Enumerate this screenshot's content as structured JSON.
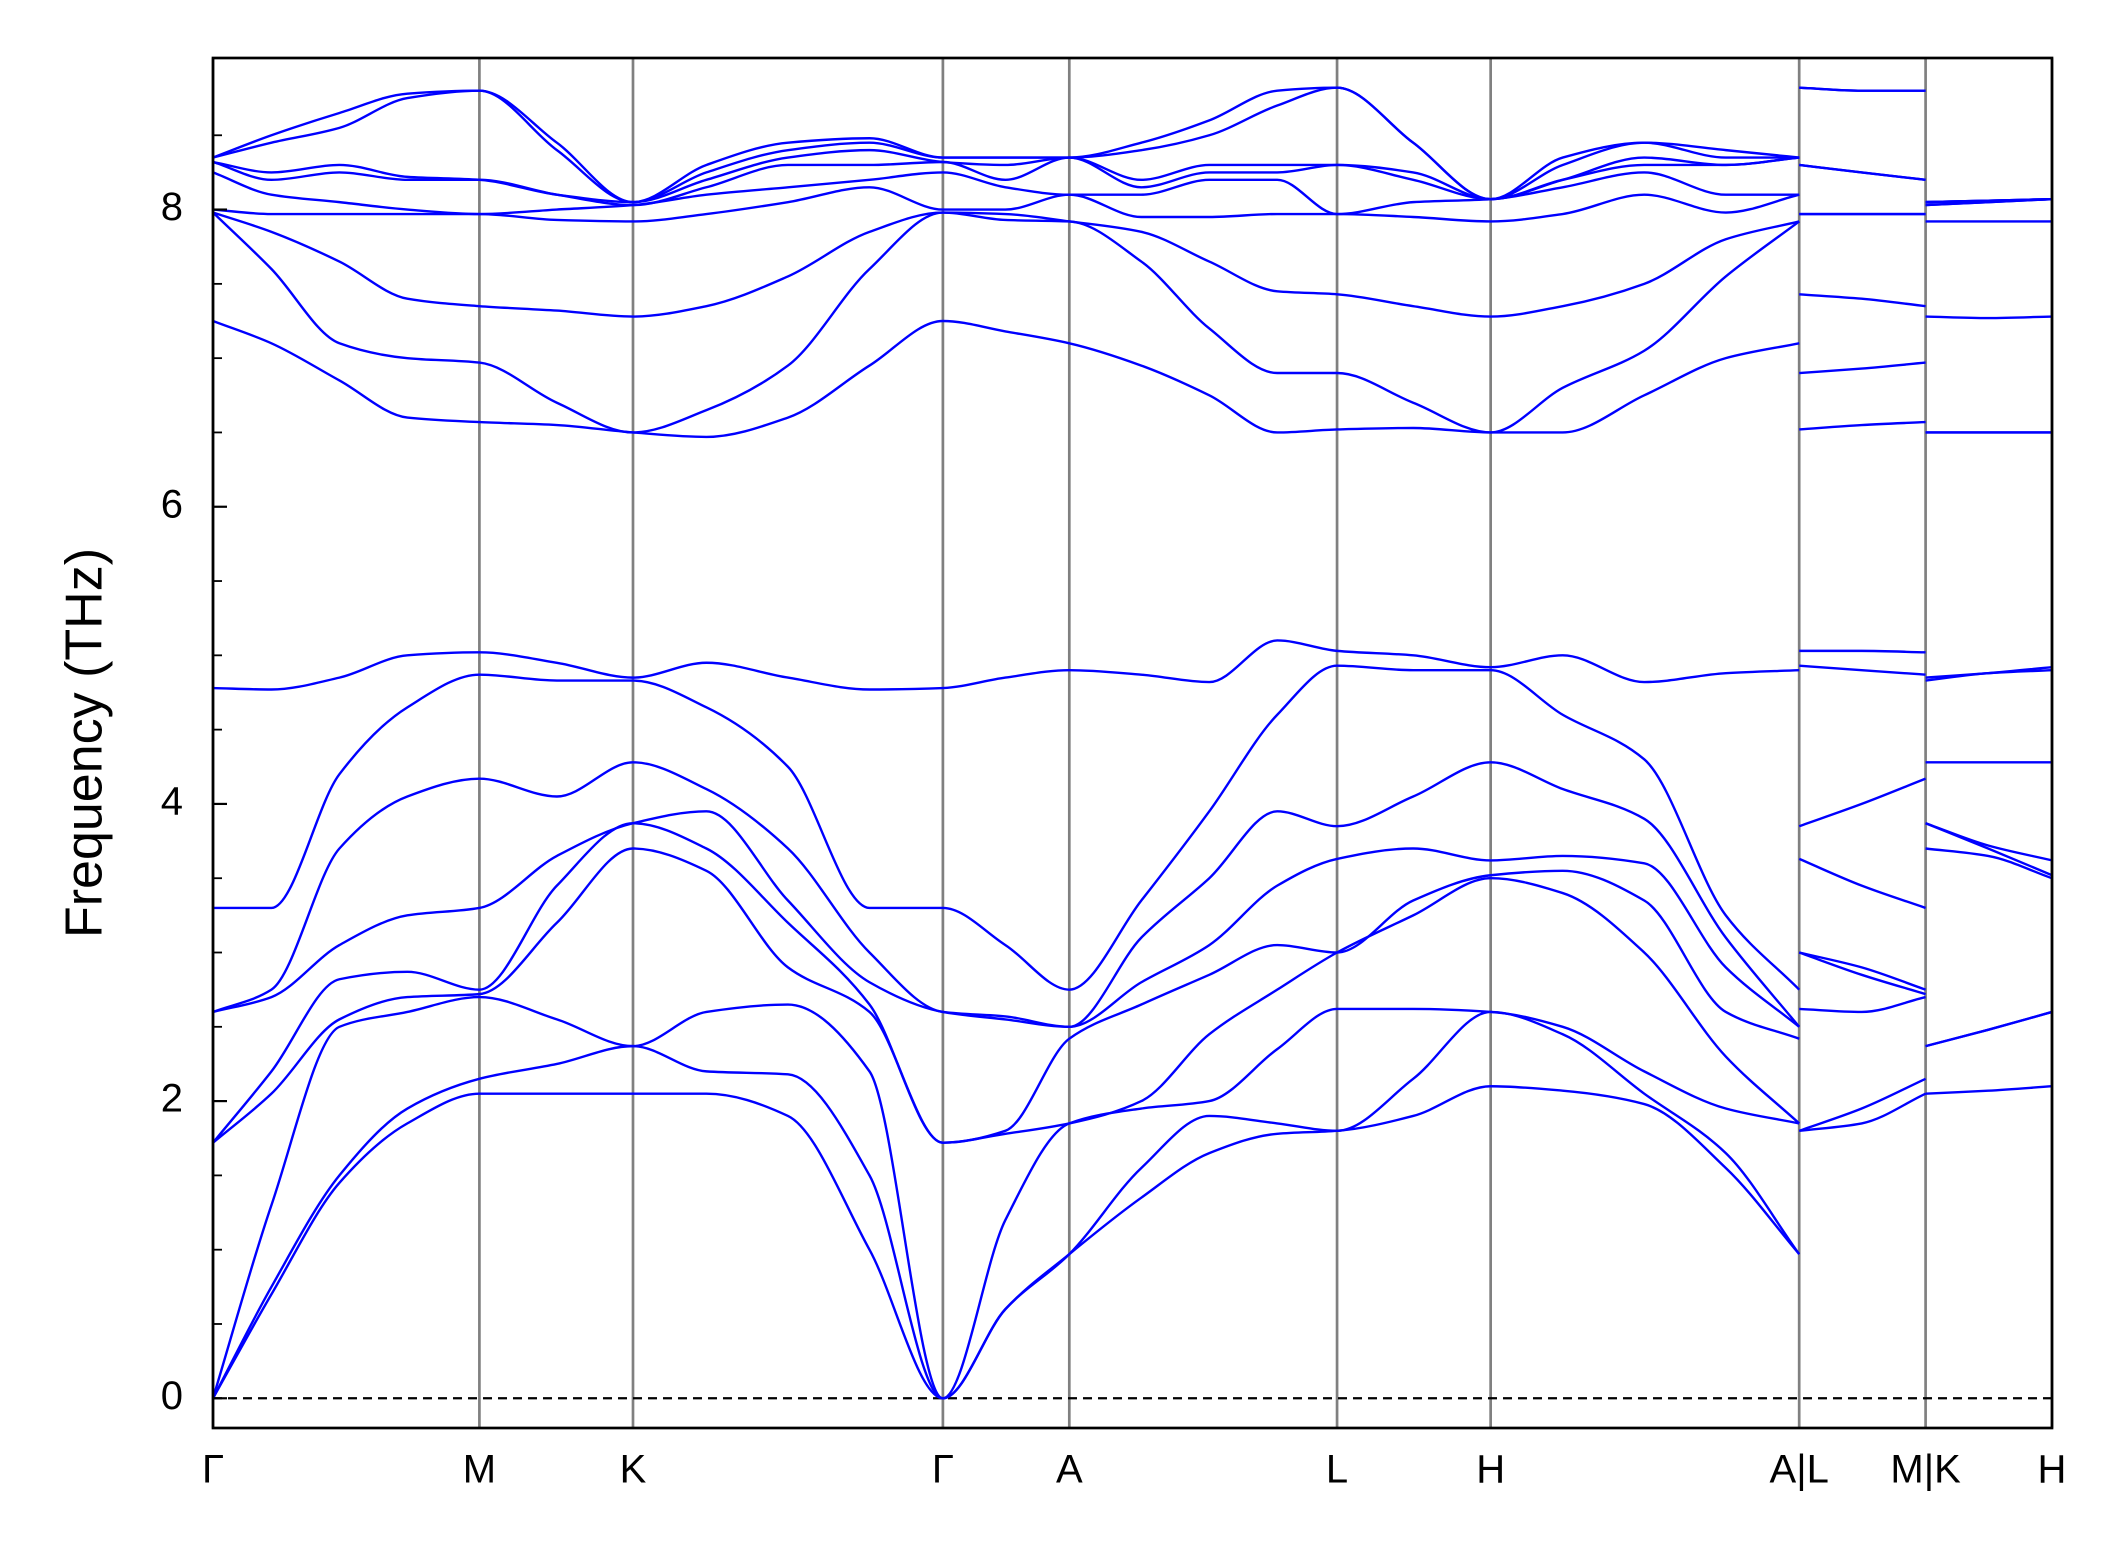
{
  "chart_data": {
    "type": "line",
    "ylabel": "Frequency (THz)",
    "xlim": [
      0,
      13.53
    ],
    "ylim": [
      -0.2,
      9.02
    ],
    "yticks": [
      0,
      2,
      4,
      6,
      8
    ],
    "yticks_minor": [
      0.5,
      1,
      1.5,
      2.5,
      3,
      3.5,
      4.5,
      5,
      5.5,
      6.5,
      7,
      7.5,
      8.5
    ],
    "xticks": [
      {
        "value": 0,
        "label": "Γ"
      },
      {
        "value": 1.96,
        "label": "M"
      },
      {
        "value": 3.09,
        "label": "K"
      },
      {
        "value": 5.37,
        "label": "Γ"
      },
      {
        "value": 6.3,
        "label": "A"
      },
      {
        "value": 8.27,
        "label": "L"
      },
      {
        "value": 9.4,
        "label": "H"
      },
      {
        "value": 11.67,
        "label": "A|L"
      },
      {
        "value": 12.6,
        "label": "M|K"
      },
      {
        "value": 13.53,
        "label": "H"
      }
    ],
    "xgrid": true,
    "xgrid_color": "#808080",
    "hline": 0,
    "x": [
      0,
      0.43,
      0.93,
      1.43,
      1.96,
      2.53,
      3.09,
      3.63,
      4.23,
      4.83,
      5.37,
      5.83,
      6.3,
      6.83,
      7.33,
      7.83,
      8.27,
      8.83,
      9.4,
      9.93,
      10.53,
      11.13,
      11.67,
      11.67,
      11.67,
      12.13,
      12.6,
      12.6,
      12.6,
      13.06,
      13.53
    ],
    "series": [
      {
        "color": "#0000ff",
        "values": [
          0,
          0.7,
          1.45,
          1.85,
          2.05,
          2.05,
          2.05,
          2.05,
          1.9,
          1.0,
          0,
          0.6,
          0.97,
          1.35,
          1.65,
          1.78,
          1.8,
          1.9,
          2.1,
          2.07,
          1.98,
          1.55,
          0.97,
          null,
          1.8,
          1.85,
          2.05,
          null,
          2.05,
          2.07,
          2.1
        ]
      },
      {
        "color": "#0000ff",
        "values": [
          0,
          0.75,
          1.5,
          1.95,
          2.15,
          2.25,
          2.37,
          2.2,
          2.18,
          1.5,
          0,
          0.6,
          0.97,
          1.55,
          1.9,
          1.85,
          1.8,
          2.15,
          2.6,
          2.45,
          2.05,
          1.65,
          0.97,
          null,
          1.8,
          1.95,
          2.15,
          null,
          2.37,
          2.48,
          2.6
        ]
      },
      {
        "color": "#0000ff",
        "values": [
          0,
          1.3,
          2.5,
          2.6,
          2.7,
          2.55,
          2.37,
          2.6,
          2.65,
          2.2,
          0,
          1.2,
          1.85,
          1.95,
          2.0,
          2.35,
          2.62,
          2.62,
          2.6,
          2.5,
          2.2,
          1.95,
          1.85,
          null,
          2.62,
          2.6,
          2.7,
          null,
          2.37,
          2.48,
          2.6
        ]
      },
      {
        "color": "#0000ff",
        "values": [
          1.72,
          2.05,
          2.55,
          2.7,
          2.72,
          3.2,
          3.7,
          3.55,
          2.9,
          2.6,
          1.72,
          1.78,
          1.85,
          2.0,
          2.45,
          2.75,
          3.0,
          3.25,
          3.5,
          3.4,
          3.0,
          2.3,
          1.85,
          null,
          3.0,
          2.85,
          2.72,
          null,
          3.7,
          3.65,
          3.5
        ]
      },
      {
        "color": "#0000ff",
        "values": [
          1.72,
          2.2,
          2.82,
          2.87,
          2.75,
          3.45,
          3.87,
          3.7,
          3.2,
          2.65,
          1.72,
          1.8,
          2.42,
          2.65,
          2.85,
          3.05,
          3.0,
          3.35,
          3.52,
          3.55,
          3.35,
          2.6,
          2.42,
          null,
          3.0,
          2.9,
          2.75,
          null,
          3.87,
          3.7,
          3.52
        ]
      },
      {
        "color": "#0000ff",
        "values": [
          2.6,
          2.7,
          3.05,
          3.25,
          3.3,
          3.65,
          3.87,
          3.95,
          3.35,
          2.8,
          2.6,
          2.55,
          2.5,
          2.8,
          3.05,
          3.45,
          3.63,
          3.7,
          3.62,
          3.65,
          3.6,
          2.9,
          2.5,
          null,
          3.63,
          3.45,
          3.3,
          null,
          3.87,
          3.72,
          3.62
        ]
      },
      {
        "color": "#0000ff",
        "values": [
          2.6,
          2.75,
          3.7,
          4.05,
          4.17,
          4.05,
          4.28,
          4.1,
          3.7,
          3.0,
          2.6,
          2.57,
          2.5,
          3.1,
          3.5,
          3.95,
          3.85,
          4.05,
          4.28,
          4.1,
          3.9,
          3.1,
          2.5,
          null,
          3.85,
          4.0,
          4.17,
          null,
          4.28,
          4.28,
          4.28
        ]
      },
      {
        "color": "#0000ff",
        "values": [
          3.3,
          3.3,
          4.2,
          4.65,
          4.87,
          4.83,
          4.83,
          4.65,
          4.25,
          3.3,
          3.3,
          3.05,
          2.75,
          3.35,
          3.95,
          4.6,
          4.93,
          4.9,
          4.9,
          4.6,
          4.3,
          3.25,
          2.75,
          null,
          4.93,
          4.9,
          4.87,
          null,
          4.83,
          4.88,
          4.9
        ]
      },
      {
        "color": "#0000ff",
        "values": [
          4.78,
          4.77,
          4.85,
          5.0,
          5.02,
          4.95,
          4.85,
          4.95,
          4.85,
          4.77,
          4.78,
          4.85,
          4.9,
          4.87,
          4.82,
          5.1,
          5.03,
          5.0,
          4.92,
          5.0,
          4.82,
          4.88,
          4.9,
          null,
          5.03,
          5.03,
          5.02,
          null,
          4.85,
          4.88,
          4.92
        ]
      },
      {
        "color": "#0000ff",
        "values": [
          7.25,
          7.1,
          6.85,
          6.6,
          6.57,
          6.55,
          6.5,
          6.47,
          6.6,
          6.95,
          7.25,
          7.18,
          7.1,
          6.95,
          6.75,
          6.5,
          6.52,
          6.53,
          6.5,
          6.5,
          6.75,
          7.0,
          7.1,
          null,
          6.52,
          6.55,
          6.57,
          null,
          6.5,
          6.5,
          6.5
        ]
      },
      {
        "color": "#0000ff",
        "values": [
          7.98,
          7.6,
          7.1,
          7.0,
          6.97,
          6.7,
          6.5,
          6.65,
          6.95,
          7.6,
          7.98,
          7.93,
          7.92,
          7.65,
          7.2,
          6.9,
          6.9,
          6.7,
          6.5,
          6.8,
          7.05,
          7.55,
          7.92,
          null,
          6.9,
          6.93,
          6.97,
          null,
          6.5,
          6.5,
          6.5
        ]
      },
      {
        "color": "#0000ff",
        "values": [
          7.98,
          7.85,
          7.65,
          7.4,
          7.35,
          7.32,
          7.28,
          7.35,
          7.55,
          7.85,
          7.98,
          7.97,
          7.92,
          7.85,
          7.65,
          7.45,
          7.43,
          7.35,
          7.28,
          7.35,
          7.5,
          7.8,
          7.92,
          null,
          7.43,
          7.4,
          7.35,
          null,
          7.28,
          7.27,
          7.28
        ]
      },
      {
        "color": "#0000ff",
        "values": [
          8.0,
          7.97,
          7.97,
          7.97,
          7.97,
          7.93,
          7.92,
          7.97,
          8.05,
          8.15,
          8.0,
          8.0,
          8.1,
          7.95,
          7.95,
          7.97,
          7.97,
          7.95,
          7.92,
          7.97,
          8.1,
          7.98,
          8.1,
          null,
          7.97,
          7.97,
          7.97,
          null,
          7.92,
          7.92,
          7.92
        ]
      },
      {
        "color": "#0000ff",
        "values": [
          8.25,
          8.1,
          8.05,
          8.0,
          7.97,
          8.0,
          8.03,
          8.1,
          8.15,
          8.2,
          8.25,
          8.15,
          8.1,
          8.1,
          8.2,
          8.2,
          7.97,
          8.05,
          8.07,
          8.15,
          8.25,
          8.1,
          8.1,
          null,
          7.97,
          7.97,
          7.97,
          null,
          8.03,
          8.05,
          8.07
        ]
      },
      {
        "color": "#0000ff",
        "values": [
          8.32,
          8.2,
          8.25,
          8.2,
          8.2,
          8.1,
          8.03,
          8.15,
          8.3,
          8.3,
          8.32,
          8.2,
          8.35,
          8.15,
          8.25,
          8.25,
          8.3,
          8.2,
          8.07,
          8.2,
          8.3,
          8.3,
          8.35,
          null,
          8.3,
          8.25,
          8.2,
          null,
          8.03,
          8.05,
          8.07
        ]
      },
      {
        "color": "#0000ff",
        "values": [
          8.32,
          8.25,
          8.3,
          8.22,
          8.2,
          8.1,
          8.05,
          8.2,
          8.35,
          8.4,
          8.32,
          8.3,
          8.35,
          8.2,
          8.3,
          8.3,
          8.3,
          8.25,
          8.07,
          8.2,
          8.35,
          8.3,
          8.35,
          null,
          8.3,
          8.25,
          8.2,
          null,
          8.05,
          8.06,
          8.07
        ]
      },
      {
        "color": "#0000ff",
        "values": [
          8.35,
          8.45,
          8.55,
          8.75,
          8.8,
          8.4,
          8.05,
          8.25,
          8.4,
          8.45,
          8.35,
          8.35,
          8.35,
          8.4,
          8.5,
          8.7,
          8.82,
          8.45,
          8.07,
          8.3,
          8.45,
          8.35,
          8.35,
          null,
          8.82,
          8.8,
          8.8,
          null,
          8.05,
          8.06,
          8.07
        ]
      },
      {
        "color": "#0000ff",
        "values": [
          8.35,
          8.5,
          8.65,
          8.78,
          8.8,
          8.45,
          8.05,
          8.3,
          8.45,
          8.48,
          8.35,
          8.35,
          8.35,
          8.45,
          8.6,
          8.8,
          8.82,
          8.45,
          8.07,
          8.35,
          8.45,
          8.4,
          8.35,
          null,
          8.82,
          8.8,
          8.8,
          null,
          8.05,
          8.06,
          8.07
        ]
      }
    ]
  }
}
